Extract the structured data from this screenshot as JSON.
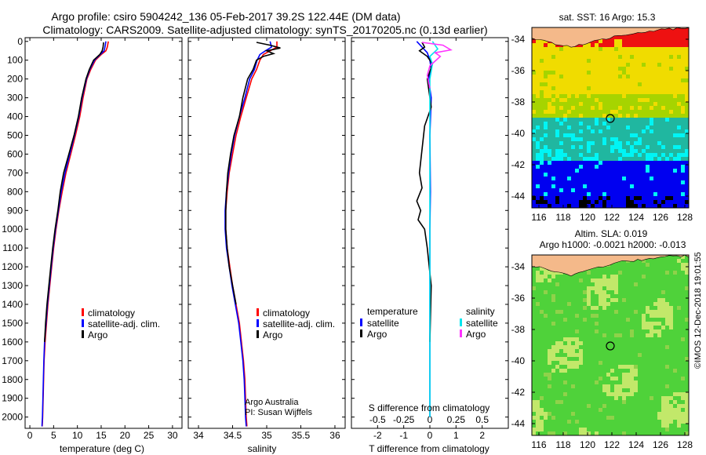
{
  "header": {
    "line1": "Argo profile: csiro 5904242_136 05-Feb-2017 39.2S 122.44E (DM data)",
    "line2": "Climatology: CARS2009. Satellite-adjusted climatology: synTS_20170205.nc (0.13d earlier)"
  },
  "credits": {
    "line1": "Argo Australia",
    "line2": "PI: Susan Wijffels",
    "stamp": "©IMOS 12-Dec-2018 19:01:55"
  },
  "colors": {
    "climatology": "#ff0000",
    "satellite": "#0000ff",
    "argo": "#000000",
    "satellite_salinity": "#00e5ee",
    "argo_salinity": "#ff33ff",
    "land": "#f4b98a",
    "sst_red": "#ee1111",
    "sst_yellow": "#f0dc00",
    "sst_green": "#a6d400",
    "sst_teal": "#20b7a0",
    "sst_cyan": "#00f5f5",
    "sst_blue": "#0000f0",
    "sla_green": "#4fd23a",
    "sla_light": "#c2e86a"
  },
  "chart_data": [
    {
      "type": "line",
      "xlabel": "temperature (deg C)",
      "xticks": [
        0,
        5,
        10,
        15,
        20,
        25,
        30
      ],
      "xlim": [
        -1,
        32
      ],
      "ylim": [
        2060,
        -20
      ],
      "yticks": [
        0,
        100,
        200,
        300,
        400,
        500,
        600,
        700,
        800,
        900,
        1000,
        1100,
        1200,
        1300,
        1400,
        1500,
        1600,
        1700,
        1800,
        1900,
        2000
      ],
      "legend": [
        "climatology",
        "satellite-adj. clim.",
        "Argo"
      ],
      "series": [
        {
          "name": "climatology",
          "color": "#ff0000",
          "x": [
            16.5,
            16.3,
            16.0,
            15.0,
            13.8,
            12.8,
            12.0,
            11.2,
            10.5,
            9.6,
            8.6,
            7.6,
            6.8,
            6.1,
            5.5,
            5.0,
            4.6,
            4.2,
            3.8,
            3.5,
            3.2,
            3.0,
            2.9,
            2.8,
            2.7,
            2.6
          ],
          "y": [
            0,
            30,
            50,
            70,
            100,
            150,
            200,
            300,
            400,
            500,
            600,
            700,
            800,
            900,
            1000,
            1100,
            1200,
            1300,
            1400,
            1500,
            1600,
            1700,
            1800,
            1900,
            2000,
            2050
          ]
        },
        {
          "name": "satellite-adj. clim.",
          "color": "#0000ff",
          "x": [
            16.0,
            15.8,
            15.6,
            14.8,
            13.6,
            12.6,
            11.9,
            11.0,
            10.3,
            9.4,
            8.4,
            7.4,
            6.6,
            6.0,
            5.4,
            4.9,
            4.5,
            4.1,
            3.7,
            3.4,
            3.1,
            2.95,
            2.85,
            2.75,
            2.65,
            2.55
          ],
          "y": [
            0,
            30,
            50,
            70,
            100,
            150,
            200,
            300,
            400,
            500,
            600,
            700,
            800,
            900,
            1000,
            1100,
            1200,
            1300,
            1400,
            1500,
            1600,
            1700,
            1800,
            1900,
            2000,
            2050
          ]
        },
        {
          "name": "Argo",
          "color": "#000000",
          "x": [
            15.5,
            15.4,
            15.2,
            14.7,
            13.4,
            12.5,
            11.8,
            10.9,
            10.2,
            9.3,
            8.2,
            7.1,
            6.4,
            5.9,
            5.3,
            4.8,
            4.4,
            4.0,
            3.6,
            3.3,
            3.1
          ],
          "y": [
            5,
            30,
            50,
            70,
            100,
            150,
            200,
            300,
            400,
            500,
            600,
            700,
            800,
            900,
            1000,
            1100,
            1200,
            1300,
            1400,
            1500,
            1600
          ]
        }
      ]
    },
    {
      "type": "line",
      "xlabel": "salinity",
      "xticks": [
        34,
        34.5,
        35,
        35.5,
        36
      ],
      "xlim": [
        33.85,
        36.15
      ],
      "ylim": [
        2060,
        -20
      ],
      "legend": [
        "climatology",
        "satellite-adj. clim.",
        "Argo"
      ],
      "series": [
        {
          "name": "climatology",
          "color": "#ff0000",
          "x": [
            35.15,
            35.15,
            35.05,
            34.95,
            34.9,
            34.85,
            34.78,
            34.7,
            34.62,
            34.55,
            34.5,
            34.45,
            34.42,
            34.4,
            34.4,
            34.42,
            34.46,
            34.5,
            34.55,
            34.6,
            34.63,
            34.66,
            34.68,
            34.69,
            34.7,
            34.71
          ],
          "y": [
            0,
            30,
            50,
            70,
            100,
            150,
            200,
            300,
            400,
            500,
            600,
            700,
            800,
            900,
            1000,
            1100,
            1200,
            1300,
            1400,
            1500,
            1600,
            1700,
            1800,
            1900,
            2000,
            2050
          ]
        },
        {
          "name": "satellite-adj. clim.",
          "color": "#0000ff",
          "x": [
            35.05,
            35.07,
            34.98,
            34.9,
            34.86,
            34.82,
            34.75,
            34.68,
            34.6,
            34.53,
            34.48,
            34.44,
            34.41,
            34.39,
            34.39,
            34.41,
            34.45,
            34.49,
            34.54,
            34.59,
            34.62,
            34.65,
            34.67,
            34.68,
            34.69,
            34.7
          ],
          "y": [
            0,
            30,
            50,
            70,
            100,
            150,
            200,
            300,
            400,
            500,
            600,
            700,
            800,
            900,
            1000,
            1100,
            1200,
            1300,
            1400,
            1500,
            1600,
            1700,
            1800,
            1900,
            2000,
            2050
          ]
        },
        {
          "name": "Argo",
          "color": "#000000",
          "x": [
            34.85,
            35.05,
            35.2,
            35.0,
            35.1,
            34.95,
            34.85,
            34.8,
            34.72,
            34.65,
            34.6,
            34.52,
            34.47,
            34.43,
            34.41,
            34.4,
            34.4,
            34.42,
            34.45,
            34.5,
            34.55
          ],
          "y": [
            5,
            20,
            35,
            50,
            65,
            80,
            100,
            150,
            200,
            300,
            400,
            500,
            600,
            700,
            800,
            900,
            1000,
            1100,
            1200,
            1300,
            1400
          ]
        }
      ]
    },
    {
      "type": "line",
      "xlabel": "T difference from climatology",
      "xlabel_top": "S difference from climatology",
      "xticks": [
        -2,
        -1,
        0,
        1,
        2
      ],
      "xticks_top": [
        "-0.5",
        "-0.25",
        "0",
        "0.25",
        "0.5"
      ],
      "xlim": [
        -3,
        3
      ],
      "ylim": [
        2060,
        -20
      ],
      "legend_left_title": "temperature",
      "legend_right_title": "salinity",
      "legend_left": [
        "satellite",
        "Argo"
      ],
      "legend_right": [
        "satellite",
        "Argo"
      ],
      "series": [
        {
          "name": "temperature satellite",
          "color": "#0000ff",
          "x": [
            -0.5,
            -0.3,
            -0.1,
            0.0,
            0.05,
            -0.05,
            0.05,
            0.0,
            0.02,
            0.0,
            0.0,
            0.0,
            0.0
          ],
          "y": [
            0,
            30,
            60,
            100,
            150,
            200,
            300,
            500,
            800,
            1000,
            1300,
            1600,
            2000
          ]
        },
        {
          "name": "temperature Argo",
          "color": "#000000",
          "x": [
            -0.3,
            -0.2,
            -0.4,
            -0.1,
            0.1,
            -0.1,
            0.05,
            -0.2,
            -0.4,
            -0.3,
            -0.5,
            -0.35,
            -0.45,
            -0.2,
            -0.1,
            0.05,
            0.0
          ],
          "y": [
            5,
            30,
            50,
            80,
            120,
            200,
            350,
            450,
            700,
            780,
            850,
            900,
            950,
            1000,
            1100,
            1300,
            1600
          ]
        },
        {
          "name": "salinity satellite",
          "color": "#00e5ee",
          "x": [
            0.1,
            0.3,
            0.0,
            0.1,
            0.0,
            0.0,
            0.0,
            0.0,
            0.0,
            0.0,
            0.0
          ],
          "y": [
            0,
            40,
            80,
            120,
            200,
            400,
            700,
            1000,
            1400,
            1800,
            2000
          ]
        },
        {
          "name": "salinity Argo",
          "color": "#ff33ff",
          "x": [
            -0.3,
            0.5,
            0.8,
            0.2,
            0.4,
            0.0,
            -0.1,
            0.0
          ],
          "y": [
            5,
            20,
            45,
            60,
            80,
            130,
            180,
            250
          ]
        }
      ]
    }
  ],
  "maps": [
    {
      "title": "sat. SST: 16 Argo: 15.3",
      "lat_ticks": [
        "-34",
        "-36",
        "-38",
        "-40",
        "-42",
        "-44"
      ],
      "lon_ticks": [
        "116",
        "118",
        "120",
        "122",
        "124",
        "126",
        "128"
      ]
    },
    {
      "title_line1": "Altim. SLA: 0.019",
      "title_line2": "Argo h1000: -0.0021 h2000: -0.013",
      "lat_ticks": [
        "-34",
        "-36",
        "-38",
        "-40",
        "-42",
        "-44"
      ],
      "lon_ticks": [
        "116",
        "118",
        "120",
        "122",
        "124",
        "126",
        "128"
      ]
    }
  ]
}
